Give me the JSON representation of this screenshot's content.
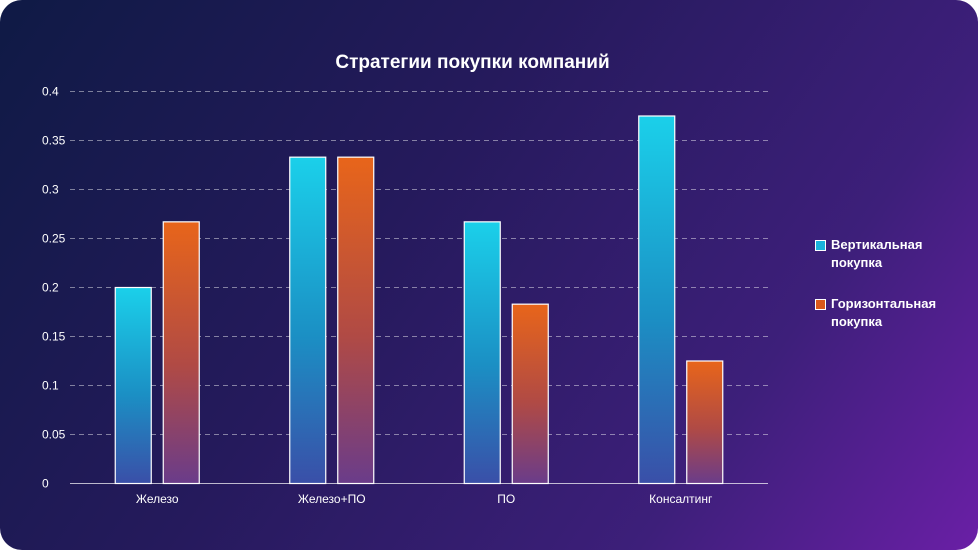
{
  "chart_data": {
    "type": "bar",
    "title": "Стратегии покупки компаний",
    "categories": [
      "Железо",
      "Железо+ПО",
      "ПО",
      "Консалтинг"
    ],
    "series": [
      {
        "name": "Вертикальная покупка",
        "values": [
          0.2,
          0.333,
          0.267,
          0.375
        ],
        "color": "#19c6e6"
      },
      {
        "name": "Горизонтальная покупка",
        "values": [
          0.267,
          0.333,
          0.183,
          0.125
        ],
        "color": "#e0601a"
      }
    ],
    "yticks": [
      "0",
      "0.05",
      "0.1",
      "0.15",
      "0.2",
      "0.25",
      "0.3",
      "0.35",
      "0.4"
    ],
    "ylim": [
      0,
      0.4
    ],
    "grid": true,
    "legend_position": "right"
  }
}
